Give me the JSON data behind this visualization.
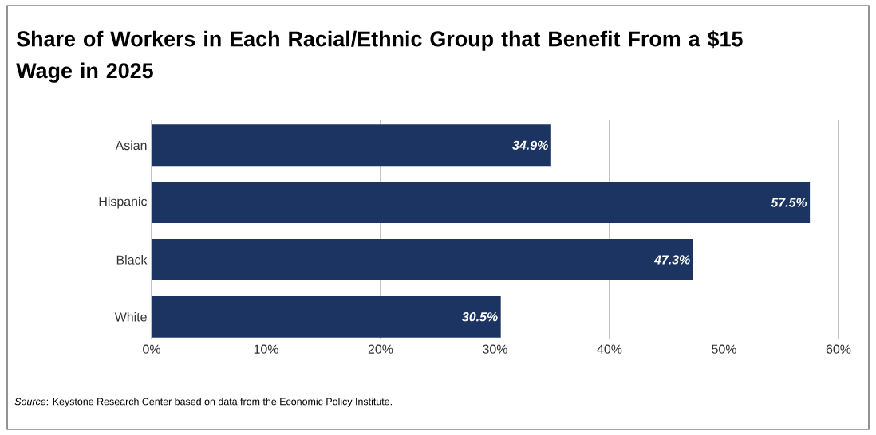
{
  "chart_data": {
    "type": "bar",
    "orientation": "horizontal",
    "title": "Share of Workers in Each Racial/Ethnic Group that Benefit From a $15 Wage in 2025",
    "categories": [
      "Asian",
      "Hispanic",
      "Black",
      "White"
    ],
    "values": [
      34.9,
      57.5,
      47.3,
      30.5
    ],
    "color": "#1c3461",
    "value_labels": [
      "34.9%",
      "57.5%",
      "47.3%",
      "30.5%"
    ],
    "xlim": [
      0,
      60
    ],
    "xticks": [
      {
        "value": 0,
        "label": "0%"
      },
      {
        "value": 10,
        "label": "10%"
      },
      {
        "value": 20,
        "label": "20%"
      },
      {
        "value": 30,
        "label": "30%"
      },
      {
        "value": 40,
        "label": "40%"
      },
      {
        "value": 50,
        "label": "50%"
      },
      {
        "value": 60,
        "label": "60%"
      }
    ],
    "grid": "x",
    "annotations": [
      "*Source*: Keystone Research Center based on data from the Economic Policy Institute."
    ]
  }
}
